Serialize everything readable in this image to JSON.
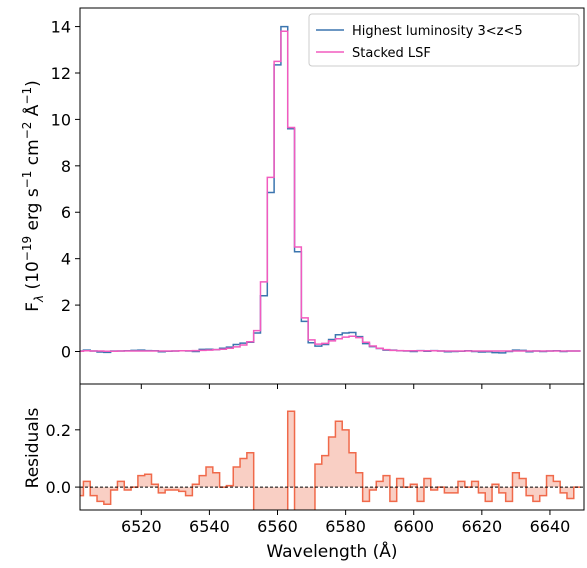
{
  "chart_data": [
    {
      "type": "line",
      "title": "",
      "xlabel": "",
      "ylabel": "F_λ (10^−19 erg s^−1 cm^−2 Å^−1)",
      "ylabel_parts": {
        "f": "F",
        "sub": "λ",
        "open": " (10",
        "exp1": "−19",
        "mid1": " erg s",
        "exp2": "−1",
        "mid2": " cm",
        "exp3": "−2",
        "mid3": " Å",
        "exp4": "−1",
        "close": ")"
      },
      "xlim": [
        6502,
        6650
      ],
      "ylim": [
        -1.4,
        14.8
      ],
      "yticks": [
        0,
        2,
        4,
        6,
        8,
        10,
        12,
        14
      ],
      "ytick_labels": [
        "0",
        "2",
        "4",
        "6",
        "8",
        "10",
        "12",
        "14"
      ],
      "x": [
        6502,
        6504,
        6506,
        6508,
        6510,
        6512,
        6514,
        6516,
        6518,
        6520,
        6522,
        6524,
        6526,
        6528,
        6530,
        6532,
        6534,
        6536,
        6538,
        6540,
        6542,
        6544,
        6546,
        6548,
        6550,
        6552,
        6554,
        6556,
        6558,
        6560,
        6562,
        6564,
        6566,
        6568,
        6570,
        6572,
        6574,
        6576,
        6578,
        6580,
        6582,
        6584,
        6586,
        6588,
        6590,
        6592,
        6594,
        6596,
        6598,
        6600,
        6602,
        6604,
        6606,
        6608,
        6610,
        6612,
        6614,
        6616,
        6618,
        6620,
        6622,
        6624,
        6626,
        6628,
        6630,
        6632,
        6634,
        6636,
        6638,
        6640,
        6642,
        6644,
        6646,
        6648
      ],
      "legend_position": "upper-right",
      "series": [
        {
          "name": "Highest luminosity 3<z<5",
          "color": "#3b75af",
          "values": [
            0.02,
            0.06,
            0.02,
            -0.02,
            -0.04,
            0.02,
            0.02,
            0.03,
            0.05,
            0.06,
            0.04,
            0.03,
            -0.01,
            0.01,
            0.02,
            0.03,
            0.02,
            0.0,
            0.09,
            0.1,
            0.08,
            0.14,
            0.19,
            0.3,
            0.36,
            0.4,
            0.8,
            2.4,
            6.85,
            12.35,
            14.0,
            9.6,
            4.3,
            1.3,
            0.38,
            0.23,
            0.3,
            0.52,
            0.72,
            0.8,
            0.82,
            0.64,
            0.34,
            0.21,
            0.13,
            0.06,
            0.06,
            0.03,
            0.02,
            0.0,
            0.04,
            0.01,
            0.04,
            0.02,
            -0.01,
            0.0,
            0.01,
            0.03,
            0.0,
            -0.02,
            -0.01,
            -0.05,
            -0.06,
            0.0,
            0.06,
            0.05,
            -0.01,
            0.02,
            0.0,
            0.02,
            0.03,
            0.0,
            0.02,
            0.02
          ]
        },
        {
          "name": "Stacked LSF",
          "color": "#f25bbf",
          "values": [
            0.01,
            0.03,
            0.02,
            0.02,
            0.01,
            0.01,
            0.02,
            0.02,
            0.02,
            0.02,
            0.02,
            0.02,
            0.02,
            0.02,
            0.02,
            0.03,
            0.03,
            0.04,
            0.05,
            0.06,
            0.08,
            0.1,
            0.14,
            0.2,
            0.28,
            0.42,
            0.9,
            3.0,
            7.5,
            12.5,
            13.8,
            9.65,
            4.5,
            1.45,
            0.5,
            0.32,
            0.35,
            0.46,
            0.55,
            0.62,
            0.66,
            0.6,
            0.4,
            0.24,
            0.14,
            0.08,
            0.05,
            0.04,
            0.03,
            0.03,
            0.03,
            0.03,
            0.03,
            0.02,
            0.02,
            0.02,
            0.02,
            0.02,
            0.02,
            0.02,
            0.02,
            0.02,
            0.02,
            0.02,
            0.02,
            0.02,
            0.02,
            0.02,
            0.02,
            0.02,
            0.02,
            0.02,
            0.02,
            0.02
          ]
        }
      ]
    },
    {
      "type": "area",
      "title": "",
      "xlabel": "Wavelength (Å)",
      "ylabel": "Residuals",
      "xlim": [
        6502,
        6650
      ],
      "ylim": [
        -0.08,
        0.36
      ],
      "xticks": [
        6520,
        6540,
        6560,
        6580,
        6600,
        6620,
        6640
      ],
      "xtick_labels": [
        "6520",
        "6540",
        "6560",
        "6580",
        "6600",
        "6620",
        "6640"
      ],
      "yticks": [
        0.0,
        0.2
      ],
      "ytick_labels": [
        "0.0",
        "0.2"
      ],
      "reference_line": 0,
      "x": [
        6502,
        6504,
        6506,
        6508,
        6510,
        6512,
        6514,
        6516,
        6518,
        6520,
        6522,
        6524,
        6526,
        6528,
        6530,
        6532,
        6534,
        6536,
        6538,
        6540,
        6542,
        6544,
        6546,
        6548,
        6550,
        6552,
        6554,
        6556,
        6558,
        6560,
        6562,
        6564,
        6566,
        6568,
        6570,
        6572,
        6574,
        6576,
        6578,
        6580,
        6582,
        6584,
        6586,
        6588,
        6590,
        6592,
        6594,
        6596,
        6598,
        6600,
        6602,
        6604,
        6606,
        6608,
        6610,
        6612,
        6614,
        6616,
        6618,
        6620,
        6622,
        6624,
        6626,
        6628,
        6630,
        6632,
        6634,
        6636,
        6638,
        6640,
        6642,
        6644,
        6646,
        6648
      ],
      "series": [
        {
          "name": "",
          "color": "#f0694a",
          "fill": "#f9cfc4",
          "values": [
            -0.03,
            0.02,
            -0.03,
            -0.05,
            -0.06,
            -0.01,
            0.02,
            -0.01,
            0.0,
            0.04,
            0.045,
            0.01,
            -0.02,
            -0.01,
            -0.01,
            -0.015,
            -0.03,
            0.01,
            0.04,
            0.07,
            0.05,
            0.0,
            0.005,
            0.07,
            0.1,
            0.12,
            -0.09,
            -0.09,
            -0.09,
            -0.09,
            -0.09,
            0.265,
            -0.09,
            -0.09,
            -0.09,
            0.08,
            0.11,
            0.175,
            0.23,
            0.2,
            0.12,
            0.05,
            -0.05,
            -0.01,
            0.02,
            0.04,
            -0.05,
            0.03,
            0.0,
            0.01,
            -0.05,
            0.03,
            -0.01,
            0.0,
            -0.02,
            -0.02,
            0.02,
            0.0,
            0.02,
            -0.02,
            -0.05,
            0.01,
            -0.02,
            -0.05,
            0.05,
            0.03,
            -0.03,
            -0.05,
            -0.03,
            0.04,
            0.02,
            -0.02,
            -0.04,
            0.0
          ]
        }
      ]
    }
  ]
}
